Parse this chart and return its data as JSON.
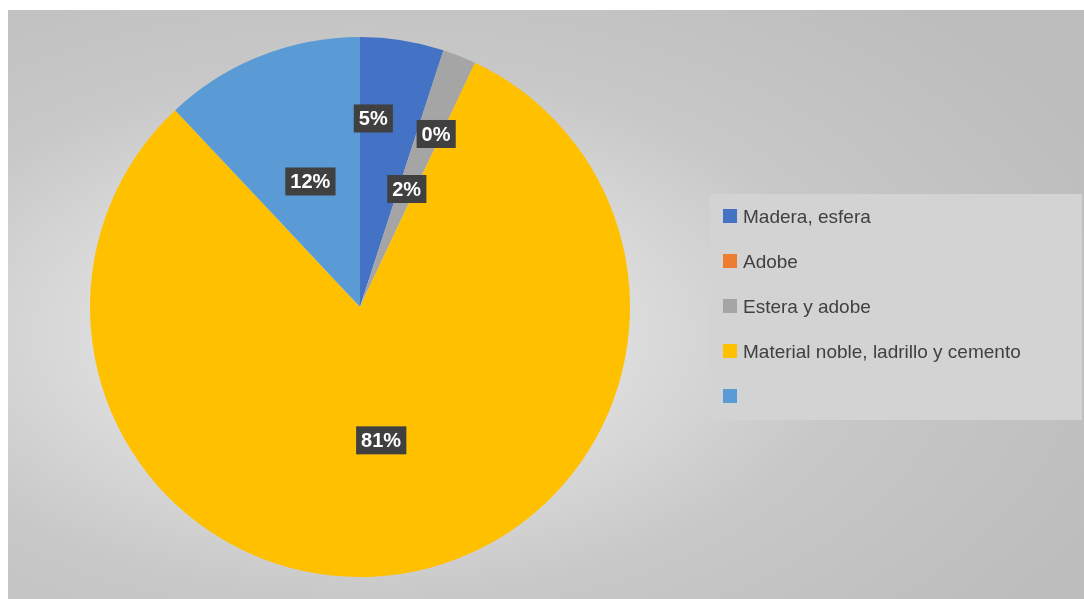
{
  "chart_data": {
    "type": "pie",
    "categories": [
      "Madera, esfera",
      "Adobe",
      "Estera y adobe",
      "Material noble, ladrillo y cemento",
      null
    ],
    "values": [
      5,
      0,
      2,
      81,
      12
    ],
    "colors": [
      "#4472c4",
      "#ed7d31",
      "#a5a5a5",
      "#ffc000",
      "#5b9bd5"
    ],
    "value_labels": [
      "5%",
      "0%",
      "2%",
      "81%",
      "12%"
    ],
    "legend": "right"
  }
}
